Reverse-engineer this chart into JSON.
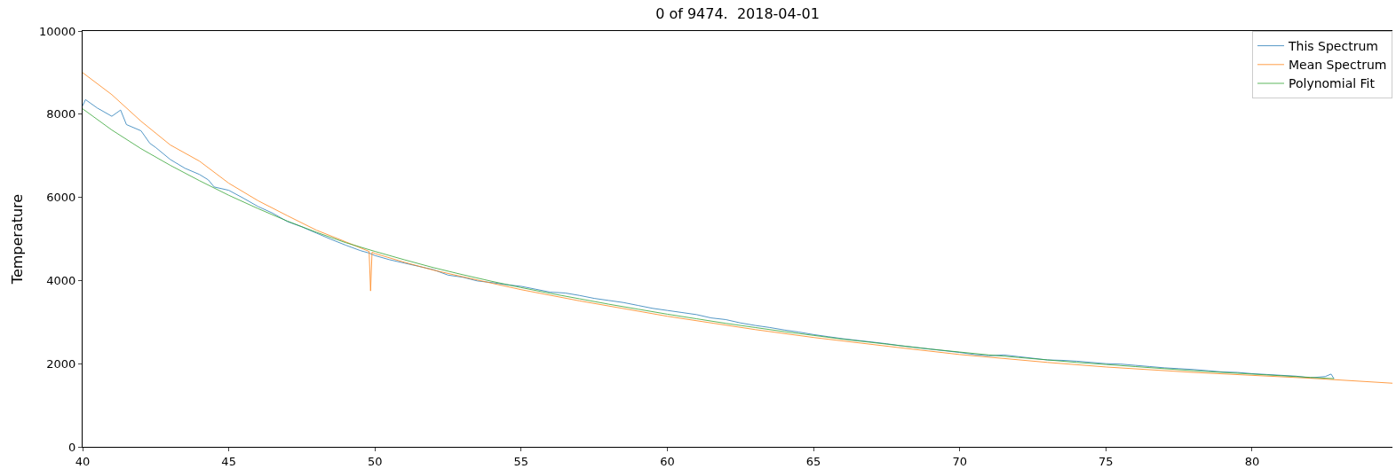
{
  "chart_data": {
    "type": "line",
    "title": "0 of 9474.  2018-04-01",
    "ylabel": "Temperature",
    "xlim": [
      40,
      84.8
    ],
    "ylim": [
      0,
      10000
    ],
    "xticks": [
      40,
      45,
      50,
      55,
      60,
      65,
      70,
      75,
      80
    ],
    "yticks": [
      0,
      2000,
      4000,
      6000,
      8000,
      10000
    ],
    "grid": false,
    "legend": "top right",
    "marker": "none",
    "line_style": "solid",
    "series": [
      {
        "name": "This Spectrum",
        "color": "#1f77b4",
        "x": [
          40,
          40.1,
          40.5,
          41,
          41.3,
          41.5,
          42,
          42.3,
          42.5,
          43,
          43.5,
          44,
          44.3,
          44.5,
          45,
          45.5,
          46,
          46.5,
          47,
          47.5,
          48,
          48.5,
          49,
          49.5,
          49.8,
          50,
          50.5,
          51,
          51.5,
          52,
          52.5,
          53,
          53.5,
          54,
          54.5,
          55,
          55.5,
          56,
          56.5,
          57,
          57.5,
          58,
          58.5,
          59,
          59.5,
          60,
          60.5,
          61,
          61.5,
          62,
          62.5,
          63,
          63.5,
          64,
          64.5,
          65,
          65.5,
          66,
          66.5,
          67,
          67.5,
          68,
          68.5,
          69,
          69.5,
          70,
          70.5,
          71,
          71.5,
          72,
          72.5,
          73,
          73.5,
          74,
          74.5,
          75,
          75.5,
          76,
          76.5,
          77,
          77.5,
          78,
          78.5,
          79,
          79.5,
          80,
          80.5,
          81,
          81.5,
          82,
          82.5,
          82.7,
          82.8
        ],
        "values": [
          8200,
          8350,
          8150,
          7950,
          8100,
          7750,
          7600,
          7300,
          7200,
          6910,
          6700,
          6550,
          6420,
          6250,
          6170,
          5980,
          5780,
          5620,
          5420,
          5290,
          5140,
          4990,
          4850,
          4720,
          4660,
          4600,
          4500,
          4420,
          4340,
          4260,
          4130,
          4080,
          3990,
          3950,
          3900,
          3860,
          3790,
          3720,
          3700,
          3640,
          3570,
          3520,
          3470,
          3400,
          3330,
          3280,
          3230,
          3180,
          3100,
          3060,
          2980,
          2920,
          2870,
          2810,
          2760,
          2700,
          2650,
          2600,
          2560,
          2520,
          2480,
          2430,
          2390,
          2350,
          2310,
          2270,
          2220,
          2190,
          2210,
          2170,
          2130,
          2090,
          2080,
          2060,
          2030,
          2000,
          1990,
          1960,
          1930,
          1900,
          1880,
          1860,
          1830,
          1800,
          1790,
          1760,
          1740,
          1720,
          1700,
          1660,
          1690,
          1750,
          1640
        ]
      },
      {
        "name": "Mean Spectrum",
        "color": "#ff7f0e",
        "x": [
          40,
          41,
          42,
          43,
          44,
          45,
          46,
          47,
          48,
          49,
          49.8,
          49.85,
          49.9,
          50,
          51,
          52,
          53,
          55,
          57,
          60,
          63,
          65,
          68,
          70,
          73,
          75,
          78,
          80,
          82,
          84.8
        ],
        "values": [
          9000,
          8470,
          7830,
          7260,
          6870,
          6340,
          5920,
          5560,
          5210,
          4930,
          4700,
          3750,
          4680,
          4650,
          4440,
          4250,
          4090,
          3780,
          3510,
          3140,
          2820,
          2630,
          2380,
          2220,
          2030,
          1920,
          1790,
          1720,
          1650,
          1530
        ]
      },
      {
        "name": "Polynomial Fit",
        "color": "#2ca02c",
        "x": [
          40,
          41,
          42,
          43,
          44,
          45,
          46,
          47,
          48,
          49,
          50,
          51,
          52,
          53,
          54,
          55,
          56,
          57,
          58,
          59,
          60,
          61,
          62,
          63,
          64,
          65,
          66,
          67,
          68,
          69,
          70,
          71,
          72,
          73,
          74,
          75,
          76,
          77,
          78,
          79,
          80,
          81,
          82,
          82.8
        ],
        "values": [
          8130,
          7620,
          7170,
          6770,
          6400,
          6050,
          5730,
          5430,
          5160,
          4910,
          4700,
          4500,
          4310,
          4140,
          3980,
          3830,
          3690,
          3560,
          3430,
          3310,
          3190,
          3080,
          2970,
          2870,
          2770,
          2680,
          2590,
          2510,
          2430,
          2350,
          2280,
          2210,
          2150,
          2090,
          2030,
          1980,
          1930,
          1880,
          1830,
          1790,
          1750,
          1710,
          1670,
          1640
        ]
      }
    ]
  }
}
